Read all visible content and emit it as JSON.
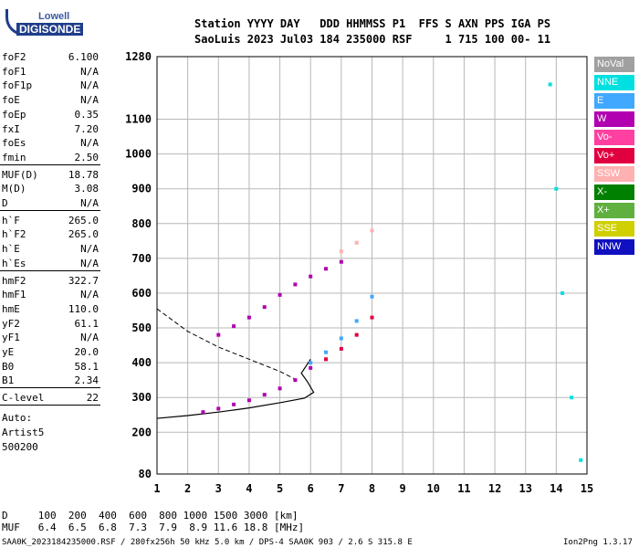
{
  "logo": {
    "line1": "Lowell",
    "line2": "DIGISONDE"
  },
  "header": {
    "line1": "Station YYYY DAY   DDD HHMMSS P1  FFS S AXN PPS IGA PS",
    "line2": "SaoLuis 2023 Jul03 184 235000 RSF     1 715 100 00- 11"
  },
  "params": [
    {
      "k": "foF2",
      "v": "6.100"
    },
    {
      "k": "foF1",
      "v": "N/A"
    },
    {
      "k": "foF1p",
      "v": "N/A"
    },
    {
      "k": "foE",
      "v": "N/A"
    },
    {
      "k": "foEp",
      "v": "0.35"
    },
    {
      "k": "fxI",
      "v": "7.20"
    },
    {
      "k": "foEs",
      "v": "N/A"
    },
    {
      "k": "fmin",
      "v": "2.50"
    },
    {
      "k": "MUF(D)",
      "v": "18.78"
    },
    {
      "k": "M(D)",
      "v": "3.08"
    },
    {
      "k": "D",
      "v": "N/A"
    },
    {
      "k": "h`F",
      "v": "265.0"
    },
    {
      "k": "h`F2",
      "v": "265.0"
    },
    {
      "k": "h`E",
      "v": "N/A"
    },
    {
      "k": "h`Es",
      "v": "N/A"
    },
    {
      "k": "hmF2",
      "v": "322.7"
    },
    {
      "k": "hmF1",
      "v": "N/A"
    },
    {
      "k": "hmE",
      "v": "110.0"
    },
    {
      "k": "yF2",
      "v": "61.1"
    },
    {
      "k": "yF1",
      "v": "N/A"
    },
    {
      "k": "yE",
      "v": "20.0"
    },
    {
      "k": "B0",
      "v": "58.1"
    },
    {
      "k": "B1",
      "v": "2.34"
    },
    {
      "k": "C-level",
      "v": "22"
    }
  ],
  "auto": [
    "Auto:",
    "Artist5",
    "500200"
  ],
  "legend": [
    {
      "label": "NoVal",
      "color": "#a0a0a0"
    },
    {
      "label": "NNE",
      "color": "#00e0e0"
    },
    {
      "label": "E",
      "color": "#40a8ff"
    },
    {
      "label": "W",
      "color": "#b000b0"
    },
    {
      "label": "Vo-",
      "color": "#ff40a0"
    },
    {
      "label": "Vo+",
      "color": "#e00040"
    },
    {
      "label": "SSW",
      "color": "#ffb0b0"
    },
    {
      "label": "X-",
      "color": "#008000"
    },
    {
      "label": "X+",
      "color": "#60b040"
    },
    {
      "label": "SSE",
      "color": "#d0d000"
    },
    {
      "label": "NNW",
      "color": "#1010c0"
    }
  ],
  "bottom_table": {
    "line1": "D     100  200  400  600  800 1000 1500 3000 [km]",
    "line2": "MUF   6.4  6.5  6.8  7.3  7.9  8.9 11.6 18.8 [MHz]"
  },
  "footer": {
    "left": "SAA0K_2023184235000.RSF / 280fx256h 50 kHz 5.0 km / DPS-4 SAA0K 903 / 2.6 S 315.8 E",
    "right": "Ion2Png 1.3.17"
  },
  "chart_data": {
    "type": "scatter",
    "title": "",
    "xlabel": "",
    "ylabel": "",
    "xlim": [
      1,
      15
    ],
    "ylim": [
      80,
      1280
    ],
    "x_ticks": [
      1,
      2,
      3,
      4,
      5,
      6,
      7,
      8,
      9,
      10,
      11,
      12,
      13,
      14,
      15
    ],
    "y_ticks": [
      80,
      200,
      300,
      400,
      500,
      600,
      700,
      800,
      900,
      1000,
      1100,
      1280
    ],
    "grid": true,
    "series": [
      {
        "name": "W",
        "color": "#b000b0",
        "x": [
          2.5,
          3.0,
          3.5,
          4.0,
          4.5,
          5.0,
          5.5,
          6.0
        ],
        "y": [
          258,
          268,
          280,
          292,
          308,
          326,
          350,
          385
        ]
      },
      {
        "name": "W",
        "color": "#b000b0",
        "x": [
          3.0,
          3.5,
          4.0,
          4.5,
          5.0,
          5.5,
          6.0,
          6.5,
          7.0
        ],
        "y": [
          480,
          505,
          530,
          560,
          595,
          625,
          648,
          670,
          690
        ]
      },
      {
        "name": "E",
        "color": "#40a8ff",
        "x": [
          6.0,
          6.5,
          7.0,
          7.5,
          8.0
        ],
        "y": [
          400,
          430,
          470,
          520,
          590
        ]
      },
      {
        "name": "Vo+",
        "color": "#e00040",
        "x": [
          6.5,
          7.0,
          7.5,
          8.0
        ],
        "y": [
          410,
          440,
          480,
          530
        ]
      },
      {
        "name": "SSW",
        "color": "#ffb0b0",
        "x": [
          7.0,
          7.5,
          8.0
        ],
        "y": [
          720,
          745,
          780
        ]
      },
      {
        "name": "NNE",
        "color": "#00e0e0",
        "x": [
          13.8,
          14.0,
          14.2,
          14.5,
          14.8
        ],
        "y": [
          1200,
          900,
          600,
          300,
          120
        ]
      }
    ],
    "profile_solid": {
      "x": [
        1.0,
        2.0,
        3.0,
        4.0,
        5.0,
        5.8,
        6.1,
        5.9,
        5.7,
        6.0
      ],
      "y": [
        240,
        248,
        258,
        270,
        285,
        298,
        315,
        345,
        370,
        410
      ]
    },
    "profile_dashed": {
      "x": [
        1.0,
        2.0,
        3.0,
        4.0,
        5.0,
        5.6
      ],
      "y": [
        555,
        490,
        445,
        410,
        375,
        348
      ]
    }
  }
}
